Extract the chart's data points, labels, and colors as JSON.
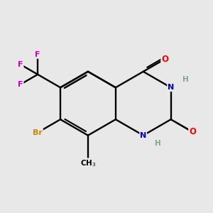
{
  "background_color": "#e8e8e8",
  "bond_color": "#000000",
  "atom_colors": {
    "O": "#ff0000",
    "N": "#0000cc",
    "H": "#7aaa88",
    "Br": "#cc8800",
    "F": "#cc00cc",
    "C": "#000000"
  },
  "figsize": [
    3.0,
    3.0
  ],
  "dpi": 100
}
